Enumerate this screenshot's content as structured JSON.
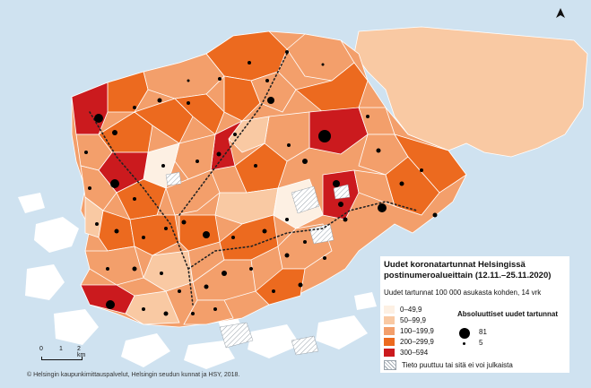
{
  "legend": {
    "title": "Uudet koronatartunnat Helsingissä postinumeroalueittain (12.11.–25.11.2020)",
    "subtitle": "Uudet tartunnat 100 000 asukasta kohden, 14 vrk",
    "classes": [
      {
        "label": "0–49,9",
        "color": "#fdf0e3"
      },
      {
        "label": "50–99,9",
        "color": "#f9c9a3"
      },
      {
        "label": "100–199,9",
        "color": "#f39f6b"
      },
      {
        "label": "200–299,9",
        "color": "#ec6a1f"
      },
      {
        "label": "300–594",
        "color": "#cb1a1e"
      }
    ],
    "abs_title": "Absoluuttiset uudet tartunnat",
    "abs_max": "81",
    "abs_min": "5",
    "na_label": "Tieto puuttuu tai sitä ei voi julkaista"
  },
  "scale": {
    "labels": [
      "0",
      "1",
      "2 km"
    ]
  },
  "copyright": "© Helsingin kaupunkimittauspalvelut, Helsingin seudun kunnat ja HSY, 2018.",
  "colors": {
    "water": "#cfe2f0",
    "island": "#ffffff",
    "border": "#ffffff",
    "metro": "#222222"
  },
  "icons": {
    "north": "north-arrow-icon"
  }
}
